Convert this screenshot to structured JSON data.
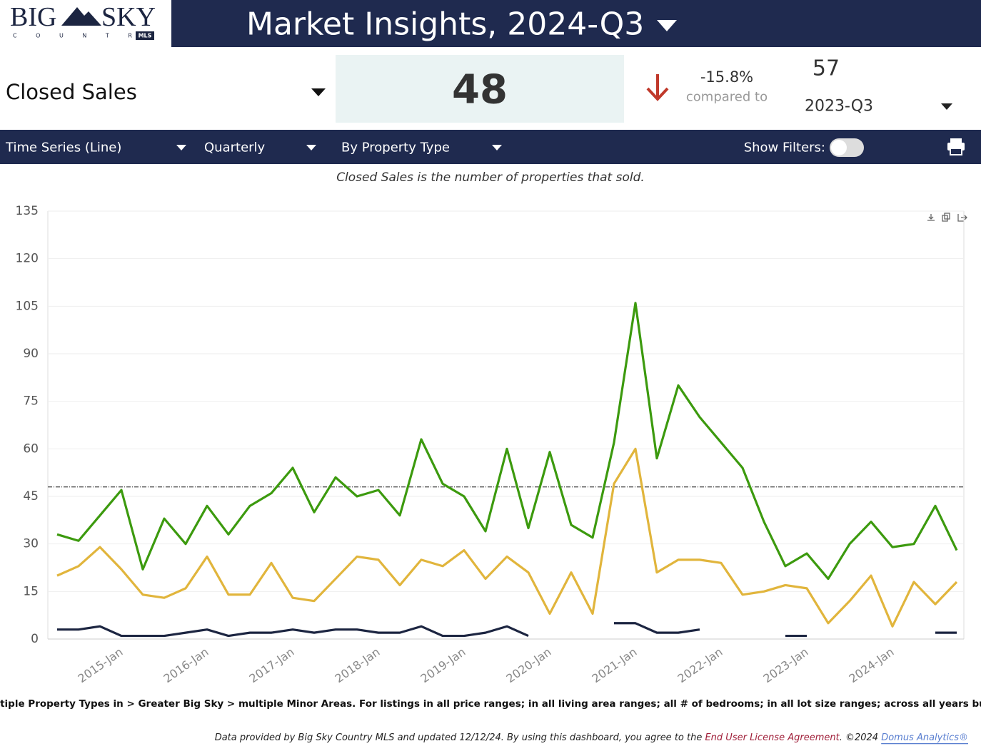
{
  "header": {
    "logo_big": "BIG",
    "logo_sky": "SKY",
    "logo_country": "C O U N T R Y",
    "logo_badge": "MLS",
    "title": "Market Insights, 2024-Q3"
  },
  "kpi": {
    "metric": "Closed Sales",
    "value": 48,
    "change": "-15.8%",
    "compared": "compared to",
    "prior_value": 57,
    "prior_period": "2023-Q3"
  },
  "toolbar": {
    "chart_type": "Time Series (Line)",
    "interval": "Quarterly",
    "group": "By Property Type",
    "filters_label": "Show Filters:"
  },
  "description": "Closed Sales is the number of properties that sold.",
  "chart_data": {
    "type": "line",
    "categories": [
      null,
      null,
      null,
      "2015-Jan",
      null,
      null,
      null,
      "2016-Jan",
      null,
      null,
      null,
      "2017-Jan",
      null,
      null,
      null,
      "2018-Jan",
      null,
      null,
      null,
      "2019-Jan",
      null,
      null,
      null,
      "2020-Jan",
      null,
      null,
      null,
      "2021-Jan",
      null,
      null,
      null,
      "2022-Jan",
      null,
      null,
      null,
      "2023-Jan",
      null,
      null,
      null,
      "2024-Jan",
      null,
      null,
      null
    ],
    "series": [
      {
        "color": "#3c9a0e",
        "values": [
          33,
          31,
          39,
          47,
          22,
          38,
          30,
          42,
          33,
          42,
          46,
          54,
          40,
          51,
          45,
          47,
          39,
          63,
          49,
          45,
          34,
          60,
          35,
          59,
          36,
          32,
          62,
          106,
          57,
          80,
          70,
          62,
          54,
          37,
          23,
          27,
          19,
          30,
          37,
          29,
          30,
          42,
          28
        ]
      },
      {
        "color": "#e1b53c",
        "values": [
          20,
          23,
          29,
          22,
          14,
          13,
          16,
          26,
          14,
          14,
          24,
          13,
          12,
          19,
          26,
          25,
          17,
          25,
          23,
          28,
          19,
          26,
          21,
          8,
          21,
          8,
          49,
          60,
          21,
          25,
          25,
          24,
          14,
          15,
          17,
          16,
          5,
          12,
          20,
          4,
          18,
          11,
          18
        ]
      },
      {
        "color": "#1c2541",
        "values": [
          3,
          3,
          4,
          1,
          1,
          1,
          2,
          3,
          1,
          2,
          2,
          3,
          2,
          3,
          3,
          2,
          2,
          4,
          1,
          1,
          2,
          4,
          1,
          null,
          null,
          null,
          5,
          5,
          2,
          2,
          3,
          null,
          null,
          null,
          1,
          1,
          null,
          null,
          null,
          null,
          null,
          2,
          2
        ]
      }
    ],
    "reference_line": 48,
    "ylim": [
      0,
      135
    ],
    "yticks": [
      0,
      15,
      30,
      45,
      60,
      75,
      90,
      105,
      120,
      135
    ],
    "grid": true
  },
  "footnote": "Multiple Property Types in > Greater Big Sky > multiple Minor Areas. For listings in all price ranges; in all living area ranges; all # of bedrooms; in all lot size ranges; across all years built.",
  "footer": {
    "text": "Data provided by Big Sky Country MLS and updated 12/12/24.  By using this dashboard, you agree to the ",
    "link1": "End User License Agreement",
    "mid": ".  ©2024 ",
    "link2": "Domus Analytics®"
  }
}
